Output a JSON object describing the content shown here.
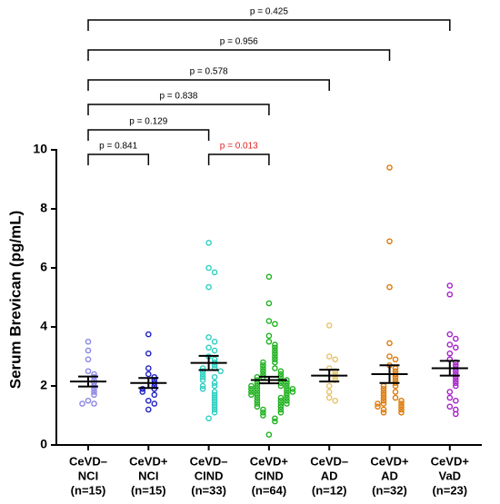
{
  "chart_data": {
    "type": "dot",
    "y_label": "Serum Brevican (pg/mL)",
    "ylim": [
      0,
      10
    ],
    "yticks": [
      0,
      2,
      4,
      6,
      8,
      10
    ],
    "categories": [
      [
        "CeVD–",
        "NCI",
        "(n=15)"
      ],
      [
        "CeVD+",
        "NCI",
        "(n=15)"
      ],
      [
        "CeVD–",
        "CIND",
        "(n=33)"
      ],
      [
        "CeVD+",
        "CIND",
        "(n=64)"
      ],
      [
        "CeVD–",
        "AD",
        "(n=12)"
      ],
      [
        "CeVD+",
        "AD",
        "(n=32)"
      ],
      [
        "CeVD+",
        "VaD",
        "(n=23)"
      ]
    ],
    "colors": [
      "#8a86e6",
      "#2020c8",
      "#2ecfc0",
      "#1fb21f",
      "#e6c46a",
      "#dd7a0a",
      "#a623c8"
    ],
    "points": [
      [
        3.5,
        3.2,
        2.9,
        2.5,
        2.4,
        2.3,
        2.2,
        2.1,
        2.0,
        1.9,
        1.8,
        1.7,
        1.5,
        1.4,
        1.4
      ],
      [
        3.75,
        3.1,
        2.6,
        2.4,
        2.3,
        2.2,
        2.1,
        2.0,
        1.9,
        1.9,
        1.8,
        1.7,
        1.5,
        1.4,
        1.2
      ],
      [
        6.85,
        6.0,
        5.85,
        5.35,
        3.65,
        3.5,
        3.3,
        3.2,
        3.0,
        2.9,
        2.8,
        2.7,
        2.6,
        2.6,
        2.5,
        2.5,
        2.4,
        2.3,
        2.3,
        2.2,
        2.1,
        2.0,
        2.0,
        1.9,
        1.8,
        1.7,
        1.6,
        1.5,
        1.4,
        1.3,
        1.2,
        1.1,
        0.9
      ],
      [
        5.7,
        4.8,
        4.2,
        4.1,
        3.7,
        3.5,
        3.4,
        3.3,
        3.2,
        3.1,
        3.0,
        2.9,
        2.8,
        2.8,
        2.7,
        2.6,
        2.6,
        2.5,
        2.5,
        2.4,
        2.4,
        2.3,
        2.3,
        2.3,
        2.2,
        2.2,
        2.2,
        2.1,
        2.1,
        2.1,
        2.0,
        2.0,
        2.0,
        2.0,
        1.9,
        1.9,
        1.9,
        1.9,
        1.8,
        1.8,
        1.8,
        1.8,
        1.7,
        1.7,
        1.7,
        1.6,
        1.6,
        1.6,
        1.5,
        1.5,
        1.5,
        1.4,
        1.4,
        1.4,
        1.3,
        1.3,
        1.2,
        1.2,
        1.1,
        1.1,
        1.0,
        0.9,
        0.8,
        0.35
      ],
      [
        4.05,
        3.0,
        2.9,
        2.6,
        2.5,
        2.4,
        2.3,
        2.2,
        2.0,
        1.8,
        1.6,
        1.5
      ],
      [
        9.4,
        6.9,
        5.35,
        3.45,
        3.0,
        2.9,
        2.7,
        2.6,
        2.5,
        2.4,
        2.3,
        2.2,
        2.1,
        2.0,
        2.0,
        1.9,
        1.8,
        1.8,
        1.7,
        1.6,
        1.6,
        1.5,
        1.5,
        1.4,
        1.4,
        1.4,
        1.3,
        1.3,
        1.2,
        1.2,
        1.1,
        1.1
      ],
      [
        5.4,
        5.1,
        3.75,
        3.6,
        3.4,
        3.3,
        3.1,
        2.9,
        2.8,
        2.7,
        2.6,
        2.5,
        2.4,
        2.3,
        2.2,
        2.1,
        2.0,
        1.8,
        1.6,
        1.5,
        1.3,
        1.2,
        1.05
      ]
    ],
    "means": [
      2.15,
      2.1,
      2.78,
      2.2,
      2.35,
      2.4,
      2.6
    ],
    "sems": [
      0.17,
      0.17,
      0.24,
      0.11,
      0.2,
      0.3,
      0.25
    ],
    "comparisons": [
      {
        "between": [
          0,
          6
        ],
        "label": "p = 0.425",
        "color": "#000000"
      },
      {
        "between": [
          0,
          5
        ],
        "label": "p = 0.956",
        "color": "#000000"
      },
      {
        "between": [
          0,
          4
        ],
        "label": "p = 0.578",
        "color": "#000000"
      },
      {
        "between": [
          0,
          3
        ],
        "label": "p = 0.838",
        "color": "#000000"
      },
      {
        "between": [
          0,
          2
        ],
        "label": "p = 0.129",
        "color": "#000000"
      },
      {
        "between": [
          0,
          1
        ],
        "label": "p = 0.841",
        "color": "#000000"
      },
      {
        "between": [
          2,
          3
        ],
        "label": "p = 0.013",
        "color": "#e02020"
      }
    ]
  }
}
